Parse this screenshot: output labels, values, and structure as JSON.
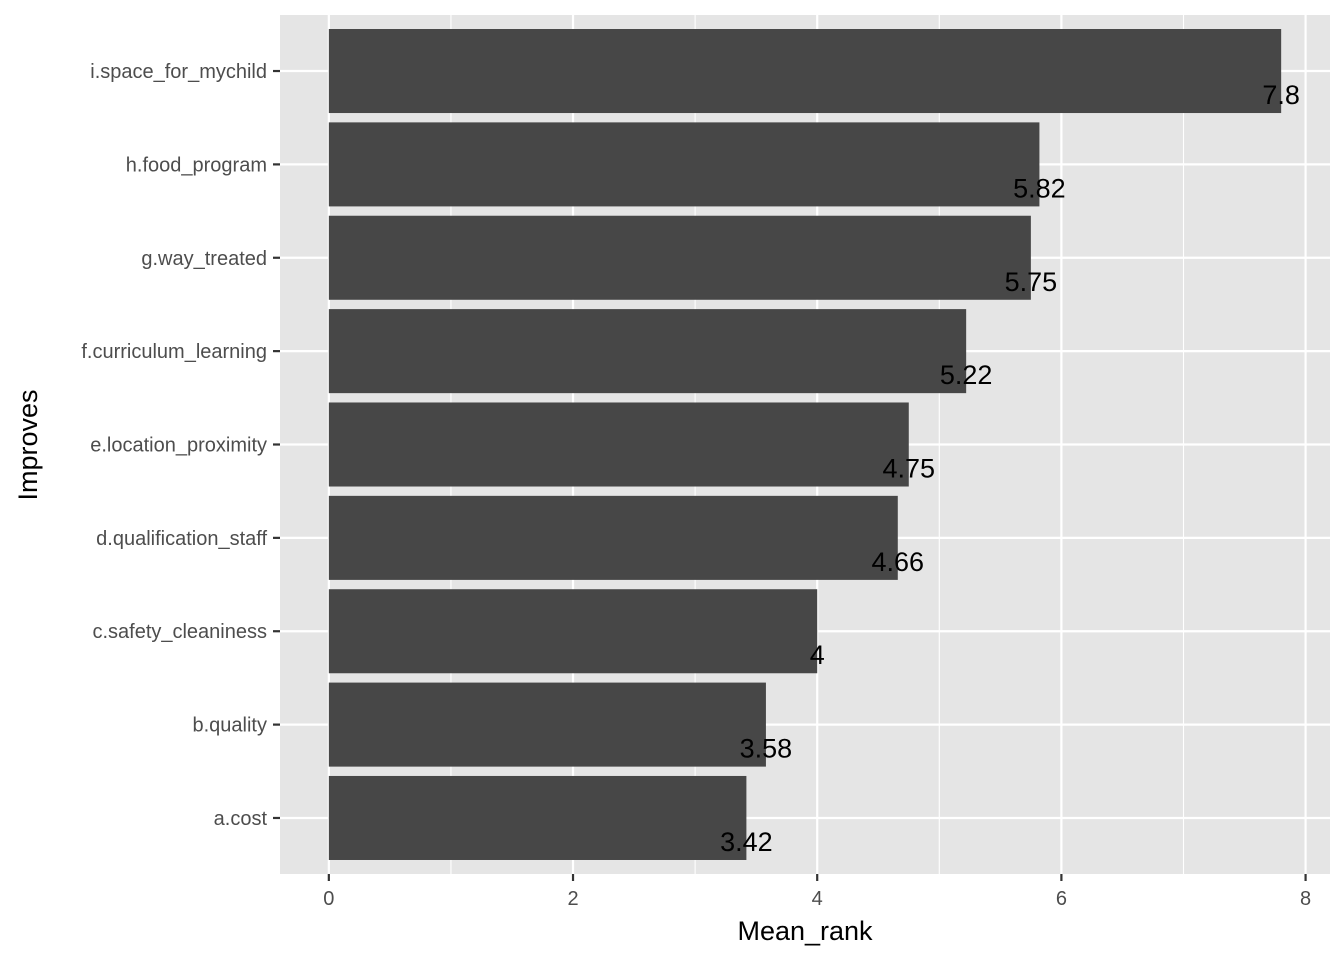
{
  "chart_data": {
    "type": "bar",
    "orientation": "horizontal",
    "categories": [
      "a.cost",
      "b.quality",
      "c.safety_cleaniness",
      "d.qualification_staff",
      "e.location_proximity",
      "f.curriculum_learning",
      "g.way_treated",
      "h.food_program",
      "i.space_for_mychild"
    ],
    "values": [
      3.42,
      3.58,
      4,
      4.66,
      4.75,
      5.22,
      5.75,
      5.82,
      7.8
    ],
    "value_labels": [
      "3.42",
      "3.58",
      "4",
      "4.66",
      "4.75",
      "5.22",
      "5.75",
      "5.82",
      "7.8"
    ],
    "xlabel": "Mean_rank",
    "ylabel": "Improves",
    "xlim": [
      -0.4,
      8.2
    ],
    "x_ticks": [
      0,
      2,
      4,
      6,
      8
    ],
    "grid": true,
    "colors": {
      "panel": "#e5e5e5",
      "grid": "#ffffff",
      "bar": "#474747"
    }
  }
}
